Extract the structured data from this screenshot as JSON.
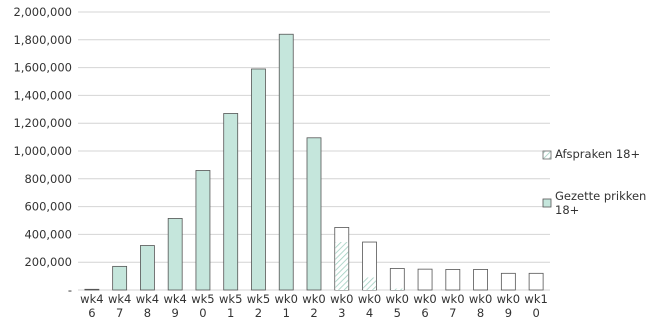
{
  "chart_data": {
    "type": "bar",
    "categories": [
      [
        "wk4",
        "6"
      ],
      [
        "wk4",
        "7"
      ],
      [
        "wk4",
        "8"
      ],
      [
        "wk4",
        "9"
      ],
      [
        "wk5",
        "0"
      ],
      [
        "wk5",
        "1"
      ],
      [
        "wk5",
        "2"
      ],
      [
        "wk0",
        "1"
      ],
      [
        "wk0",
        "2"
      ],
      [
        "wk0",
        "3"
      ],
      [
        "wk0",
        "4"
      ],
      [
        "wk0",
        "5"
      ],
      [
        "wk0",
        "6"
      ],
      [
        "wk0",
        "7"
      ],
      [
        "wk0",
        "8"
      ],
      [
        "wk0",
        "9"
      ],
      [
        "wk1",
        "0"
      ]
    ],
    "series": [
      {
        "name": "Afspraken 18+",
        "values": [
          5000,
          170000,
          320000,
          515000,
          860000,
          1270000,
          1590000,
          1840000,
          1095000,
          450000,
          345000,
          155000,
          150000,
          148000,
          148000,
          120000,
          120000
        ]
      },
      {
        "name": "Gezette prikken 18+",
        "values": [
          5000,
          170000,
          320000,
          515000,
          860000,
          1270000,
          1590000,
          1840000,
          1095000,
          345000,
          90000,
          10000,
          0,
          0,
          0,
          0,
          0
        ]
      }
    ],
    "y_ticks": [
      "2,000,000",
      "1,800,000",
      "1,600,000",
      "1,400,000",
      "1,200,000",
      "1,000,000",
      "800,000",
      "600,000",
      "400,000",
      "200,000",
      "-"
    ],
    "ylim": [
      0,
      2000000
    ],
    "legend_position": "right",
    "grid": true,
    "colors": {
      "filled": "#c5e6dc",
      "stroke": "#555555",
      "gridline": "#d4d4d4"
    }
  }
}
